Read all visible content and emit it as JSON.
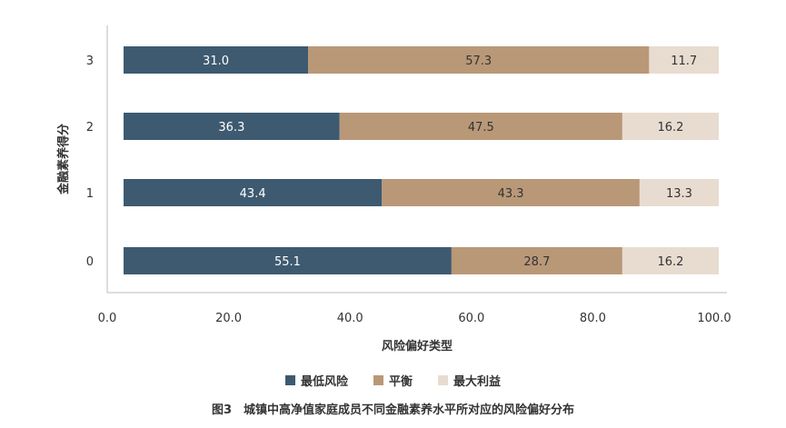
{
  "chart_data": {
    "type": "bar",
    "orientation": "horizontal",
    "stacked": true,
    "categories": [
      "3",
      "2",
      "1",
      "0"
    ],
    "series": [
      {
        "name": "最低风险",
        "color": "#3d5a70",
        "values": [
          31.0,
          36.3,
          43.4,
          55.1
        ]
      },
      {
        "name": "平衡",
        "color": "#b99878",
        "values": [
          57.3,
          47.5,
          43.3,
          28.7
        ]
      },
      {
        "name": "最大利益",
        "color": "#e8dcd0",
        "values": [
          11.7,
          16.2,
          13.3,
          16.2
        ]
      }
    ],
    "xlabel": "风险偏好类型",
    "ylabel": "金融素养得分",
    "xlim": [
      0,
      100
    ],
    "xticks": [
      "0.0",
      "20.0",
      "40.0",
      "60.0",
      "80.0",
      "100.0"
    ],
    "legend_position": "bottom",
    "grid": false
  },
  "caption": "图3　城镇中高净值家庭成员不同金融素养水平所对应的风险偏好分布"
}
